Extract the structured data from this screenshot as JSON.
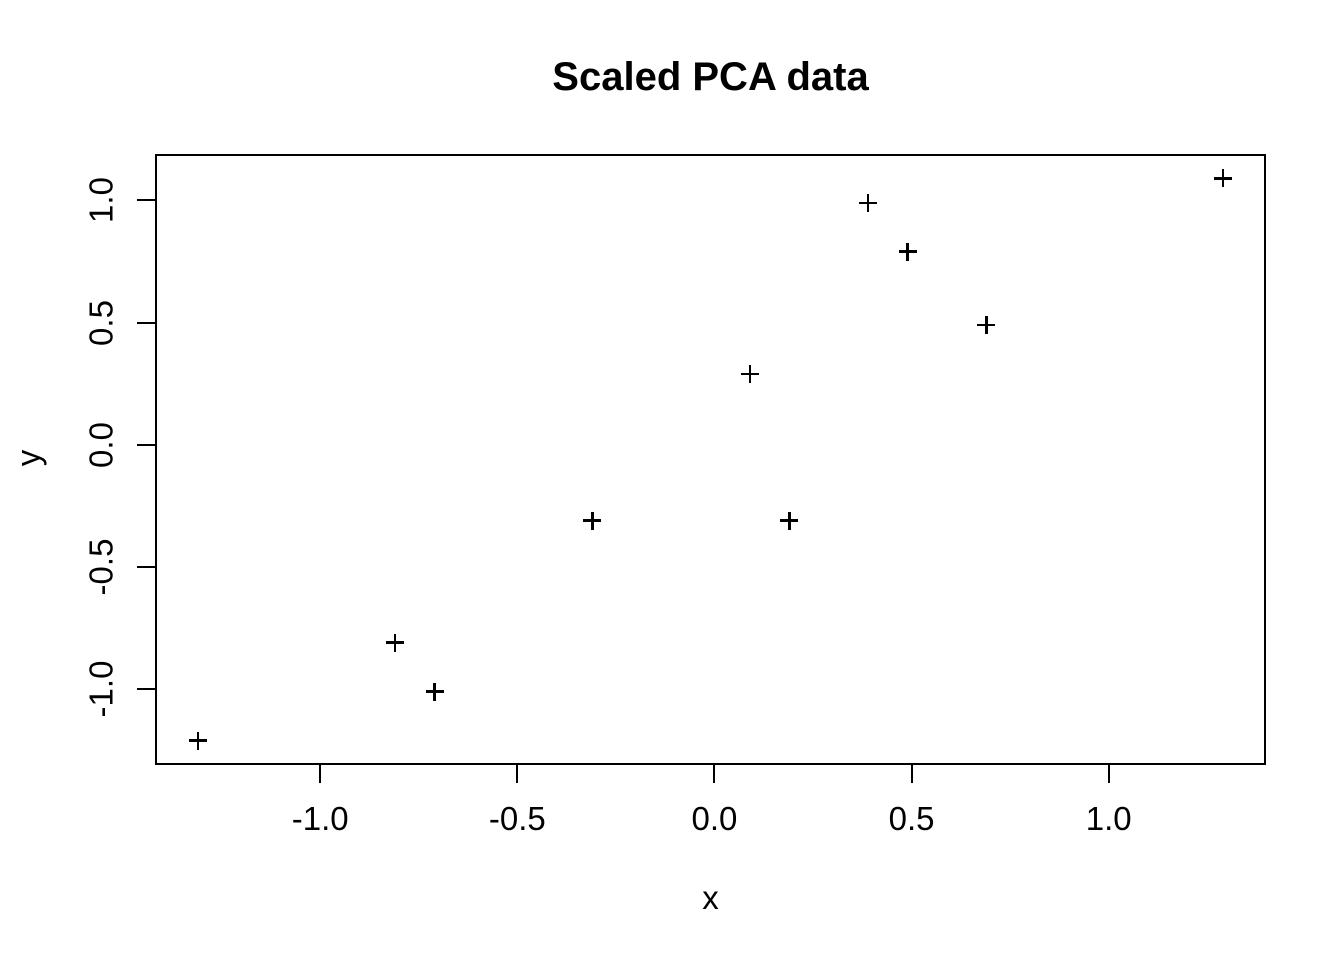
{
  "chart_data": {
    "type": "scatter",
    "title": "Scaled PCA data",
    "xlabel": "x",
    "ylabel": "y",
    "marker": "plus",
    "grid": false,
    "legend": "none",
    "xlim": [
      -1.414,
      1.394
    ],
    "ylim": [
      -1.302,
      1.182
    ],
    "x_ticks": [
      -1.0,
      -0.5,
      0.0,
      0.5,
      1.0
    ],
    "x_tick_labels": [
      "-1.0",
      "-0.5",
      "0.0",
      "0.5",
      "1.0"
    ],
    "y_ticks": [
      -1.0,
      -0.5,
      0.0,
      0.5,
      1.0
    ],
    "y_tick_labels": [
      "-1.0",
      "-0.5",
      "0.0",
      "0.5",
      "1.0"
    ],
    "points": [
      {
        "x": 0.69,
        "y": 0.49
      },
      {
        "x": -1.31,
        "y": -1.21
      },
      {
        "x": 0.39,
        "y": 0.99
      },
      {
        "x": 0.09,
        "y": 0.29
      },
      {
        "x": 1.29,
        "y": 1.09
      },
      {
        "x": 0.49,
        "y": 0.79
      },
      {
        "x": 0.19,
        "y": -0.31
      },
      {
        "x": -0.81,
        "y": -0.81
      },
      {
        "x": -0.31,
        "y": -0.31
      },
      {
        "x": -0.71,
        "y": -1.01
      }
    ],
    "colors": {
      "marker": "#000000",
      "axis": "#000000",
      "text": "#000000",
      "background": "#ffffff"
    }
  }
}
